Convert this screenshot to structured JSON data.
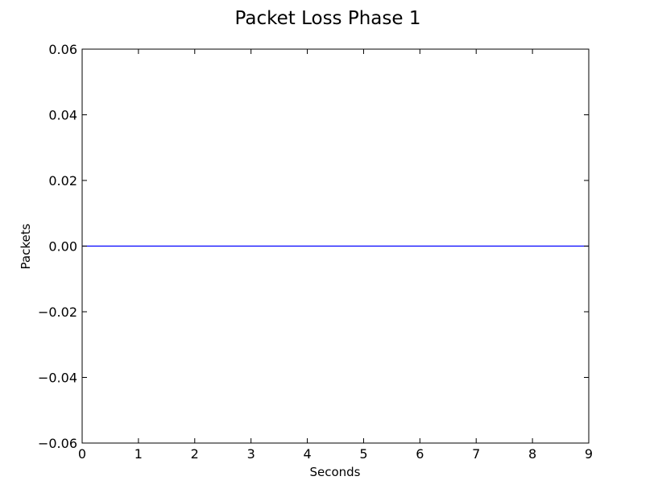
{
  "chart_data": {
    "type": "line",
    "title": "Packet Loss Phase 1",
    "xlabel": "Seconds",
    "ylabel": "Packets",
    "xlim": [
      0,
      9
    ],
    "ylim": [
      -0.06,
      0.06
    ],
    "xticks": [
      0,
      1,
      2,
      3,
      4,
      5,
      6,
      7,
      8,
      9
    ],
    "xtick_labels": [
      "0",
      "1",
      "2",
      "3",
      "4",
      "5",
      "6",
      "7",
      "8",
      "9"
    ],
    "yticks": [
      -0.06,
      -0.04,
      -0.02,
      0.0,
      0.02,
      0.04,
      0.06
    ],
    "ytick_labels": [
      "−0.06",
      "−0.04",
      "−0.02",
      "0.00",
      "0.02",
      "0.04",
      "0.06"
    ],
    "grid": false,
    "series": [
      {
        "color": "#0000ff",
        "x": [
          0,
          1,
          2,
          3,
          4,
          5,
          6,
          7,
          8,
          9
        ],
        "y": [
          0,
          0,
          0,
          0,
          0,
          0,
          0,
          0,
          0,
          0
        ]
      }
    ]
  }
}
